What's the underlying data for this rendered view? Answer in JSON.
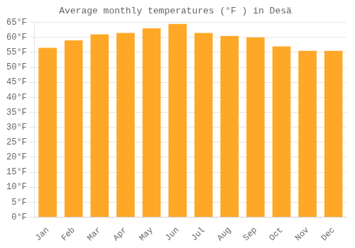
{
  "chart_data": {
    "type": "bar",
    "title": "Average monthly temperatures (°F ) in Desä",
    "categories": [
      "Jan",
      "Feb",
      "Mar",
      "Apr",
      "May",
      "Jun",
      "Jul",
      "Aug",
      "Sep",
      "Oct",
      "Nov",
      "Dec"
    ],
    "values": [
      56.5,
      59.0,
      61.0,
      61.5,
      63.0,
      64.5,
      61.5,
      60.5,
      60.0,
      57.0,
      55.5,
      55.5
    ],
    "color": "#FFA726",
    "ylim": [
      0,
      65
    ],
    "yticks": [
      {
        "value": 0,
        "label": "0°F"
      },
      {
        "value": 5,
        "label": "5°F"
      },
      {
        "value": 10,
        "label": "10°F"
      },
      {
        "value": 15,
        "label": "15°F"
      },
      {
        "value": 20,
        "label": "20°F"
      },
      {
        "value": 25,
        "label": "25°F"
      },
      {
        "value": 30,
        "label": "30°F"
      },
      {
        "value": 35,
        "label": "35°F"
      },
      {
        "value": 40,
        "label": "40°F"
      },
      {
        "value": 45,
        "label": "45°F"
      },
      {
        "value": 50,
        "label": "50°F"
      },
      {
        "value": 55,
        "label": "55°F"
      },
      {
        "value": 60,
        "label": "60°F"
      },
      {
        "value": 65,
        "label": "65°F"
      }
    ],
    "grid": true
  }
}
